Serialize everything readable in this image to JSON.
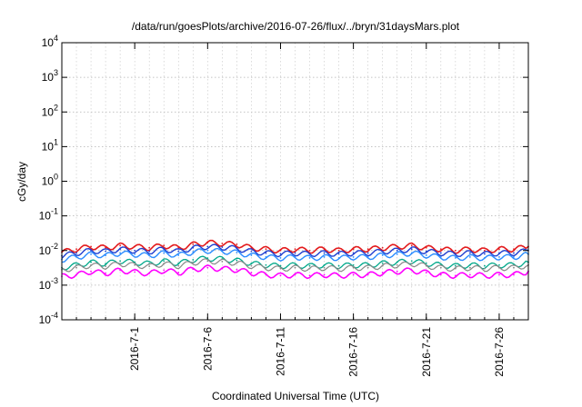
{
  "chart_data": {
    "type": "line",
    "title": "/data/run/goesPlots/archive/2016-07-26/flux/../bryn/31daysMars.plot",
    "xlabel": "Coordinated Universal Time (UTC)",
    "ylabel": "cGy/day",
    "yscale": "log",
    "ylim": [
      0.0001,
      10000
    ],
    "xlim": [
      "2016-06-26",
      "2016-07-28"
    ],
    "grid": true,
    "y_ticks": [
      {
        "value": 0.0001,
        "base": "10",
        "exp": "-4"
      },
      {
        "value": 0.001,
        "base": "10",
        "exp": "-3"
      },
      {
        "value": 0.01,
        "base": "10",
        "exp": "-2"
      },
      {
        "value": 0.1,
        "base": "10",
        "exp": "-1"
      },
      {
        "value": 1,
        "base": "10",
        "exp": "0"
      },
      {
        "value": 10,
        "base": "10",
        "exp": "1"
      },
      {
        "value": 100,
        "base": "10",
        "exp": "2"
      },
      {
        "value": 1000,
        "base": "10",
        "exp": "3"
      },
      {
        "value": 10000,
        "base": "10",
        "exp": "4"
      }
    ],
    "x_ticks": [
      {
        "date": "2016-07-01",
        "label": "2016-7-1"
      },
      {
        "date": "2016-07-06",
        "label": "2016-7-6"
      },
      {
        "date": "2016-07-11",
        "label": "2016-7-11"
      },
      {
        "date": "2016-07-16",
        "label": "2016-7-16"
      },
      {
        "date": "2016-07-21",
        "label": "2016-7-21"
      },
      {
        "date": "2016-07-26",
        "label": "2016-7-26"
      }
    ],
    "x": [
      "2016-06-26",
      "2016-06-27",
      "2016-06-28",
      "2016-06-29",
      "2016-06-30",
      "2016-07-01",
      "2016-07-02",
      "2016-07-03",
      "2016-07-04",
      "2016-07-05",
      "2016-07-06",
      "2016-07-07",
      "2016-07-08",
      "2016-07-09",
      "2016-07-10",
      "2016-07-11",
      "2016-07-12",
      "2016-07-13",
      "2016-07-14",
      "2016-07-15",
      "2016-07-16",
      "2016-07-17",
      "2016-07-18",
      "2016-07-19",
      "2016-07-20",
      "2016-07-21",
      "2016-07-22",
      "2016-07-23",
      "2016-07-24",
      "2016-07-25",
      "2016-07-26",
      "2016-07-27",
      "2016-07-28"
    ],
    "series": [
      {
        "color": "#e31a1c",
        "width": 1.6,
        "values": [
          0.009,
          0.011,
          0.013,
          0.012,
          0.014,
          0.013,
          0.012,
          0.014,
          0.012,
          0.015,
          0.017,
          0.016,
          0.015,
          0.012,
          0.011,
          0.01,
          0.011,
          0.01,
          0.011,
          0.01,
          0.011,
          0.011,
          0.012,
          0.013,
          0.014,
          0.012,
          0.011,
          0.01,
          0.011,
          0.01,
          0.011,
          0.011,
          0.013
        ]
      },
      {
        "color": "#1f3fd0",
        "width": 1.4,
        "values": [
          0.007,
          0.0085,
          0.01,
          0.0095,
          0.011,
          0.01,
          0.0095,
          0.011,
          0.0095,
          0.012,
          0.013,
          0.0125,
          0.0115,
          0.0095,
          0.0085,
          0.008,
          0.0085,
          0.008,
          0.0085,
          0.008,
          0.0085,
          0.0085,
          0.0095,
          0.01,
          0.011,
          0.0095,
          0.0085,
          0.008,
          0.0085,
          0.008,
          0.0085,
          0.0085,
          0.01
        ]
      },
      {
        "color": "#2b8cff",
        "width": 1.4,
        "values": [
          0.0055,
          0.0065,
          0.0078,
          0.0072,
          0.0085,
          0.0078,
          0.0072,
          0.0085,
          0.0073,
          0.0092,
          0.01,
          0.0096,
          0.0088,
          0.0073,
          0.0065,
          0.0061,
          0.0065,
          0.0061,
          0.0065,
          0.0061,
          0.0065,
          0.0065,
          0.0073,
          0.0078,
          0.0085,
          0.0073,
          0.0065,
          0.0061,
          0.0065,
          0.0061,
          0.0065,
          0.0065,
          0.0078
        ]
      },
      {
        "color": "#00a88a",
        "width": 1.3,
        "values": [
          0.0032,
          0.0038,
          0.0046,
          0.0042,
          0.005,
          0.0046,
          0.0042,
          0.005,
          0.0043,
          0.0054,
          0.006,
          0.0057,
          0.0052,
          0.0043,
          0.0038,
          0.0036,
          0.0038,
          0.0036,
          0.0038,
          0.0036,
          0.0038,
          0.0038,
          0.0043,
          0.0046,
          0.005,
          0.0043,
          0.0038,
          0.0036,
          0.0038,
          0.0036,
          0.0038,
          0.0038,
          0.0046
        ]
      },
      {
        "color": "#888888",
        "width": 1.2,
        "values": [
          0.0028,
          0.0032,
          0.0038,
          0.0035,
          0.0042,
          0.0038,
          0.0035,
          0.0042,
          0.0036,
          0.0045,
          0.005,
          0.0048,
          0.0044,
          0.0036,
          0.0032,
          0.003,
          0.0032,
          0.003,
          0.0032,
          0.003,
          0.0032,
          0.0032,
          0.0036,
          0.0038,
          0.0042,
          0.0036,
          0.0032,
          0.003,
          0.0032,
          0.003,
          0.0032,
          0.0032,
          0.0038
        ]
      },
      {
        "color": "#ff00ff",
        "width": 1.6,
        "values": [
          0.0018,
          0.002,
          0.0025,
          0.0022,
          0.0027,
          0.0024,
          0.0022,
          0.0027,
          0.0023,
          0.0029,
          0.0032,
          0.003,
          0.0028,
          0.0023,
          0.002,
          0.0019,
          0.002,
          0.0019,
          0.002,
          0.0019,
          0.002,
          0.002,
          0.0023,
          0.0025,
          0.0027,
          0.0023,
          0.002,
          0.0019,
          0.002,
          0.0019,
          0.002,
          0.002,
          0.0025
        ]
      }
    ]
  }
}
